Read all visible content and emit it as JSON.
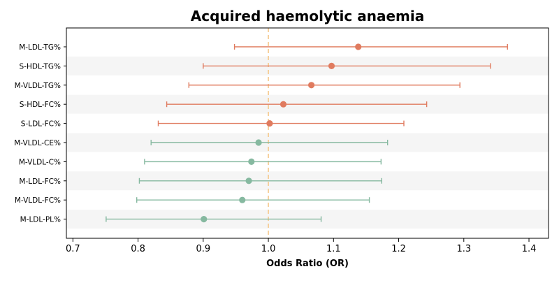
{
  "chart_data": {
    "type": "forest",
    "title": "Acquired haemolytic anaemia",
    "xlabel": "Odds Ratio (OR)",
    "xlim": [
      0.69,
      1.43
    ],
    "xticks": [
      "0.7",
      "0.8",
      "0.9",
      "1.0",
      "1.1",
      "1.2",
      "1.3",
      "1.4"
    ],
    "reference_line": 1.0,
    "colors": {
      "positive": "#e07b5f",
      "negative": "#86b9a0",
      "reference": "#f6c98b",
      "band": "#f5f5f5"
    },
    "rows": [
      {
        "label": "M-LDL-TG%",
        "or": 1.138,
        "lo": 0.948,
        "hi": 1.367,
        "group": "positive"
      },
      {
        "label": "S-HDL-TG%",
        "or": 1.097,
        "lo": 0.9,
        "hi": 1.341,
        "group": "positive"
      },
      {
        "label": "M-VLDL-TG%",
        "or": 1.066,
        "lo": 0.878,
        "hi": 1.294,
        "group": "positive"
      },
      {
        "label": "S-HDL-FC%",
        "or": 1.023,
        "lo": 0.844,
        "hi": 1.243,
        "group": "positive"
      },
      {
        "label": "S-LDL-FC%",
        "or": 1.002,
        "lo": 0.831,
        "hi": 1.208,
        "group": "positive"
      },
      {
        "label": "M-VLDL-CE%",
        "or": 0.985,
        "lo": 0.82,
        "hi": 1.183,
        "group": "negative"
      },
      {
        "label": "M-VLDL-C%",
        "or": 0.974,
        "lo": 0.81,
        "hi": 1.173,
        "group": "negative"
      },
      {
        "label": "M-LDL-FC%",
        "or": 0.97,
        "lo": 0.802,
        "hi": 1.174,
        "group": "negative"
      },
      {
        "label": "M-VLDL-FC%",
        "or": 0.96,
        "lo": 0.798,
        "hi": 1.155,
        "group": "negative"
      },
      {
        "label": "M-LDL-PL%",
        "or": 0.901,
        "lo": 0.751,
        "hi": 1.081,
        "group": "negative"
      }
    ]
  }
}
